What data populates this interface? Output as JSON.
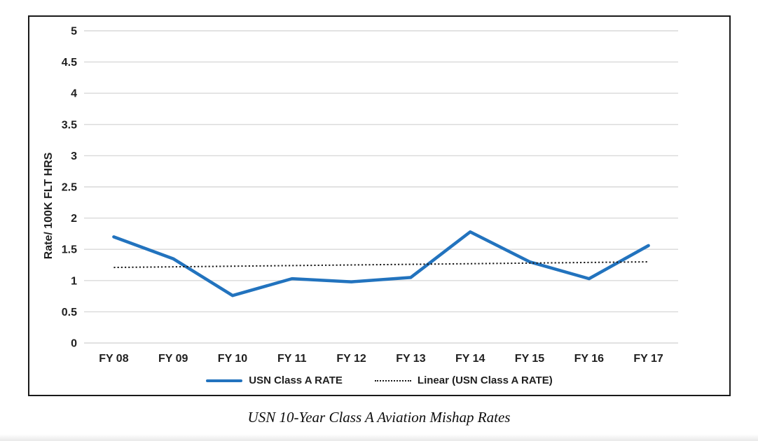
{
  "figure": {
    "caption": "USN 10-Year Class A Aviation Mishap Rates"
  },
  "legend": {
    "items": [
      {
        "label": "USN Class A RATE"
      },
      {
        "label": "Linear (USN Class A RATE)"
      }
    ]
  },
  "chart_data": {
    "type": "line",
    "title": "",
    "xlabel": "",
    "ylabel": "Rate/ 100K FLT HRS",
    "categories": [
      "FY 08",
      "FY 09",
      "FY 10",
      "FY 11",
      "FY 12",
      "FY 13",
      "FY 14",
      "FY 15",
      "FY 16",
      "FY 17"
    ],
    "series": [
      {
        "name": "USN Class A RATE",
        "style": "solid",
        "color": "#2273BE",
        "width": 4.5,
        "values": [
          1.7,
          1.35,
          0.76,
          1.03,
          0.98,
          1.05,
          1.78,
          1.3,
          1.03,
          1.56
        ]
      },
      {
        "name": "Linear (USN Class A RATE)",
        "style": "dotted",
        "color": "#1a1a1a",
        "width": 2,
        "values": [
          1.21,
          1.22,
          1.23,
          1.24,
          1.25,
          1.26,
          1.27,
          1.28,
          1.29,
          1.3
        ]
      }
    ],
    "ylim": [
      0,
      5
    ],
    "ytick_values": [
      0,
      0.5,
      1,
      1.5,
      2,
      2.5,
      3,
      3.5,
      4,
      4.5,
      5
    ],
    "ytick_labels": [
      "0",
      "0.5",
      "1",
      "1.5",
      "2",
      "2.5",
      "3",
      "3.5",
      "4",
      "4.5",
      "5"
    ],
    "grid": true,
    "gridline_color": "#D9D9D9",
    "text_color": "#1f1f1f",
    "legend_position": "bottom"
  }
}
